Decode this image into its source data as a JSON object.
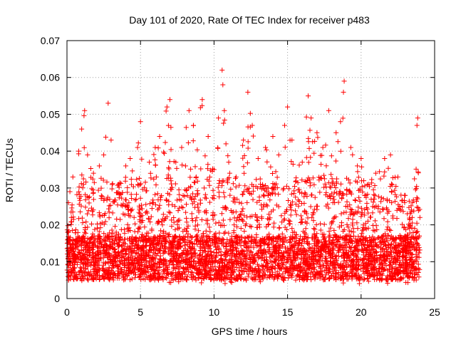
{
  "chart_data": {
    "type": "scatter",
    "title": "Day 101 of 2020, Rate Of TEC Index for receiver p483",
    "xlabel": "GPS time / hours",
    "ylabel": "ROTI / TECUs",
    "xlim": [
      0,
      25
    ],
    "ylim": [
      0,
      0.07
    ],
    "x_ticks": [
      0,
      5,
      10,
      15,
      20,
      25
    ],
    "x_tick_labels": [
      "0",
      "5",
      "10",
      "15",
      "20",
      "25"
    ],
    "y_ticks": [
      0,
      0.01,
      0.02,
      0.03,
      0.04,
      0.05,
      0.06,
      0.07
    ],
    "y_tick_labels": [
      "0",
      "0.01",
      "0.02",
      "0.03",
      "0.04",
      "0.05",
      "0.06",
      "0.07"
    ],
    "grid": true,
    "marker": "+",
    "color": "#ff0000",
    "series": [
      {
        "name": "ROTI",
        "points": [
          [
            0.05,
            0.018
          ],
          [
            0.1,
            0.026
          ],
          [
            0.2,
            0.029
          ],
          [
            0.3,
            0.022
          ],
          [
            0.4,
            0.033
          ],
          [
            0.5,
            0.012
          ],
          [
            0.8,
            0.04
          ],
          [
            1.0,
            0.046
          ],
          [
            1.2,
            0.051
          ],
          [
            1.4,
            0.039
          ],
          [
            1.8,
            0.034
          ],
          [
            2.2,
            0.036
          ],
          [
            2.5,
            0.039
          ],
          [
            2.8,
            0.053
          ],
          [
            3.0,
            0.043
          ],
          [
            3.5,
            0.031
          ],
          [
            4.0,
            0.036
          ],
          [
            4.3,
            0.038
          ],
          [
            4.8,
            0.041
          ],
          [
            5.0,
            0.048
          ],
          [
            5.6,
            0.037
          ],
          [
            6.0,
            0.041
          ],
          [
            6.3,
            0.044
          ],
          [
            6.8,
            0.052
          ],
          [
            7.0,
            0.054
          ],
          [
            7.4,
            0.037
          ],
          [
            7.8,
            0.041
          ],
          [
            8.3,
            0.051
          ],
          [
            8.6,
            0.047
          ],
          [
            9.2,
            0.054
          ],
          [
            9.6,
            0.044
          ],
          [
            10.0,
            0.035
          ],
          [
            10.3,
            0.049
          ],
          [
            10.55,
            0.062
          ],
          [
            10.6,
            0.058
          ],
          [
            10.7,
            0.051
          ],
          [
            11.0,
            0.037
          ],
          [
            11.5,
            0.033
          ],
          [
            12.0,
            0.043
          ],
          [
            12.3,
            0.056
          ],
          [
            12.6,
            0.047
          ],
          [
            13.0,
            0.038
          ],
          [
            13.5,
            0.041
          ],
          [
            14.0,
            0.044
          ],
          [
            14.4,
            0.039
          ],
          [
            14.8,
            0.047
          ],
          [
            15.0,
            0.052
          ],
          [
            15.3,
            0.043
          ],
          [
            16.0,
            0.037
          ],
          [
            16.4,
            0.055
          ],
          [
            16.6,
            0.049
          ],
          [
            17.0,
            0.045
          ],
          [
            17.4,
            0.041
          ],
          [
            17.8,
            0.051
          ],
          [
            18.3,
            0.045
          ],
          [
            18.6,
            0.048
          ],
          [
            18.8,
            0.056
          ],
          [
            18.85,
            0.059
          ],
          [
            19.3,
            0.041
          ],
          [
            20.0,
            0.038
          ],
          [
            20.5,
            0.031
          ],
          [
            21.0,
            0.034
          ],
          [
            21.6,
            0.038
          ],
          [
            22.0,
            0.039
          ],
          [
            22.5,
            0.033
          ],
          [
            23.0,
            0.028
          ],
          [
            23.5,
            0.026
          ],
          [
            23.8,
            0.047
          ],
          [
            23.85,
            0.049
          ],
          [
            24.0,
            0.022
          ]
        ]
      }
    ]
  }
}
